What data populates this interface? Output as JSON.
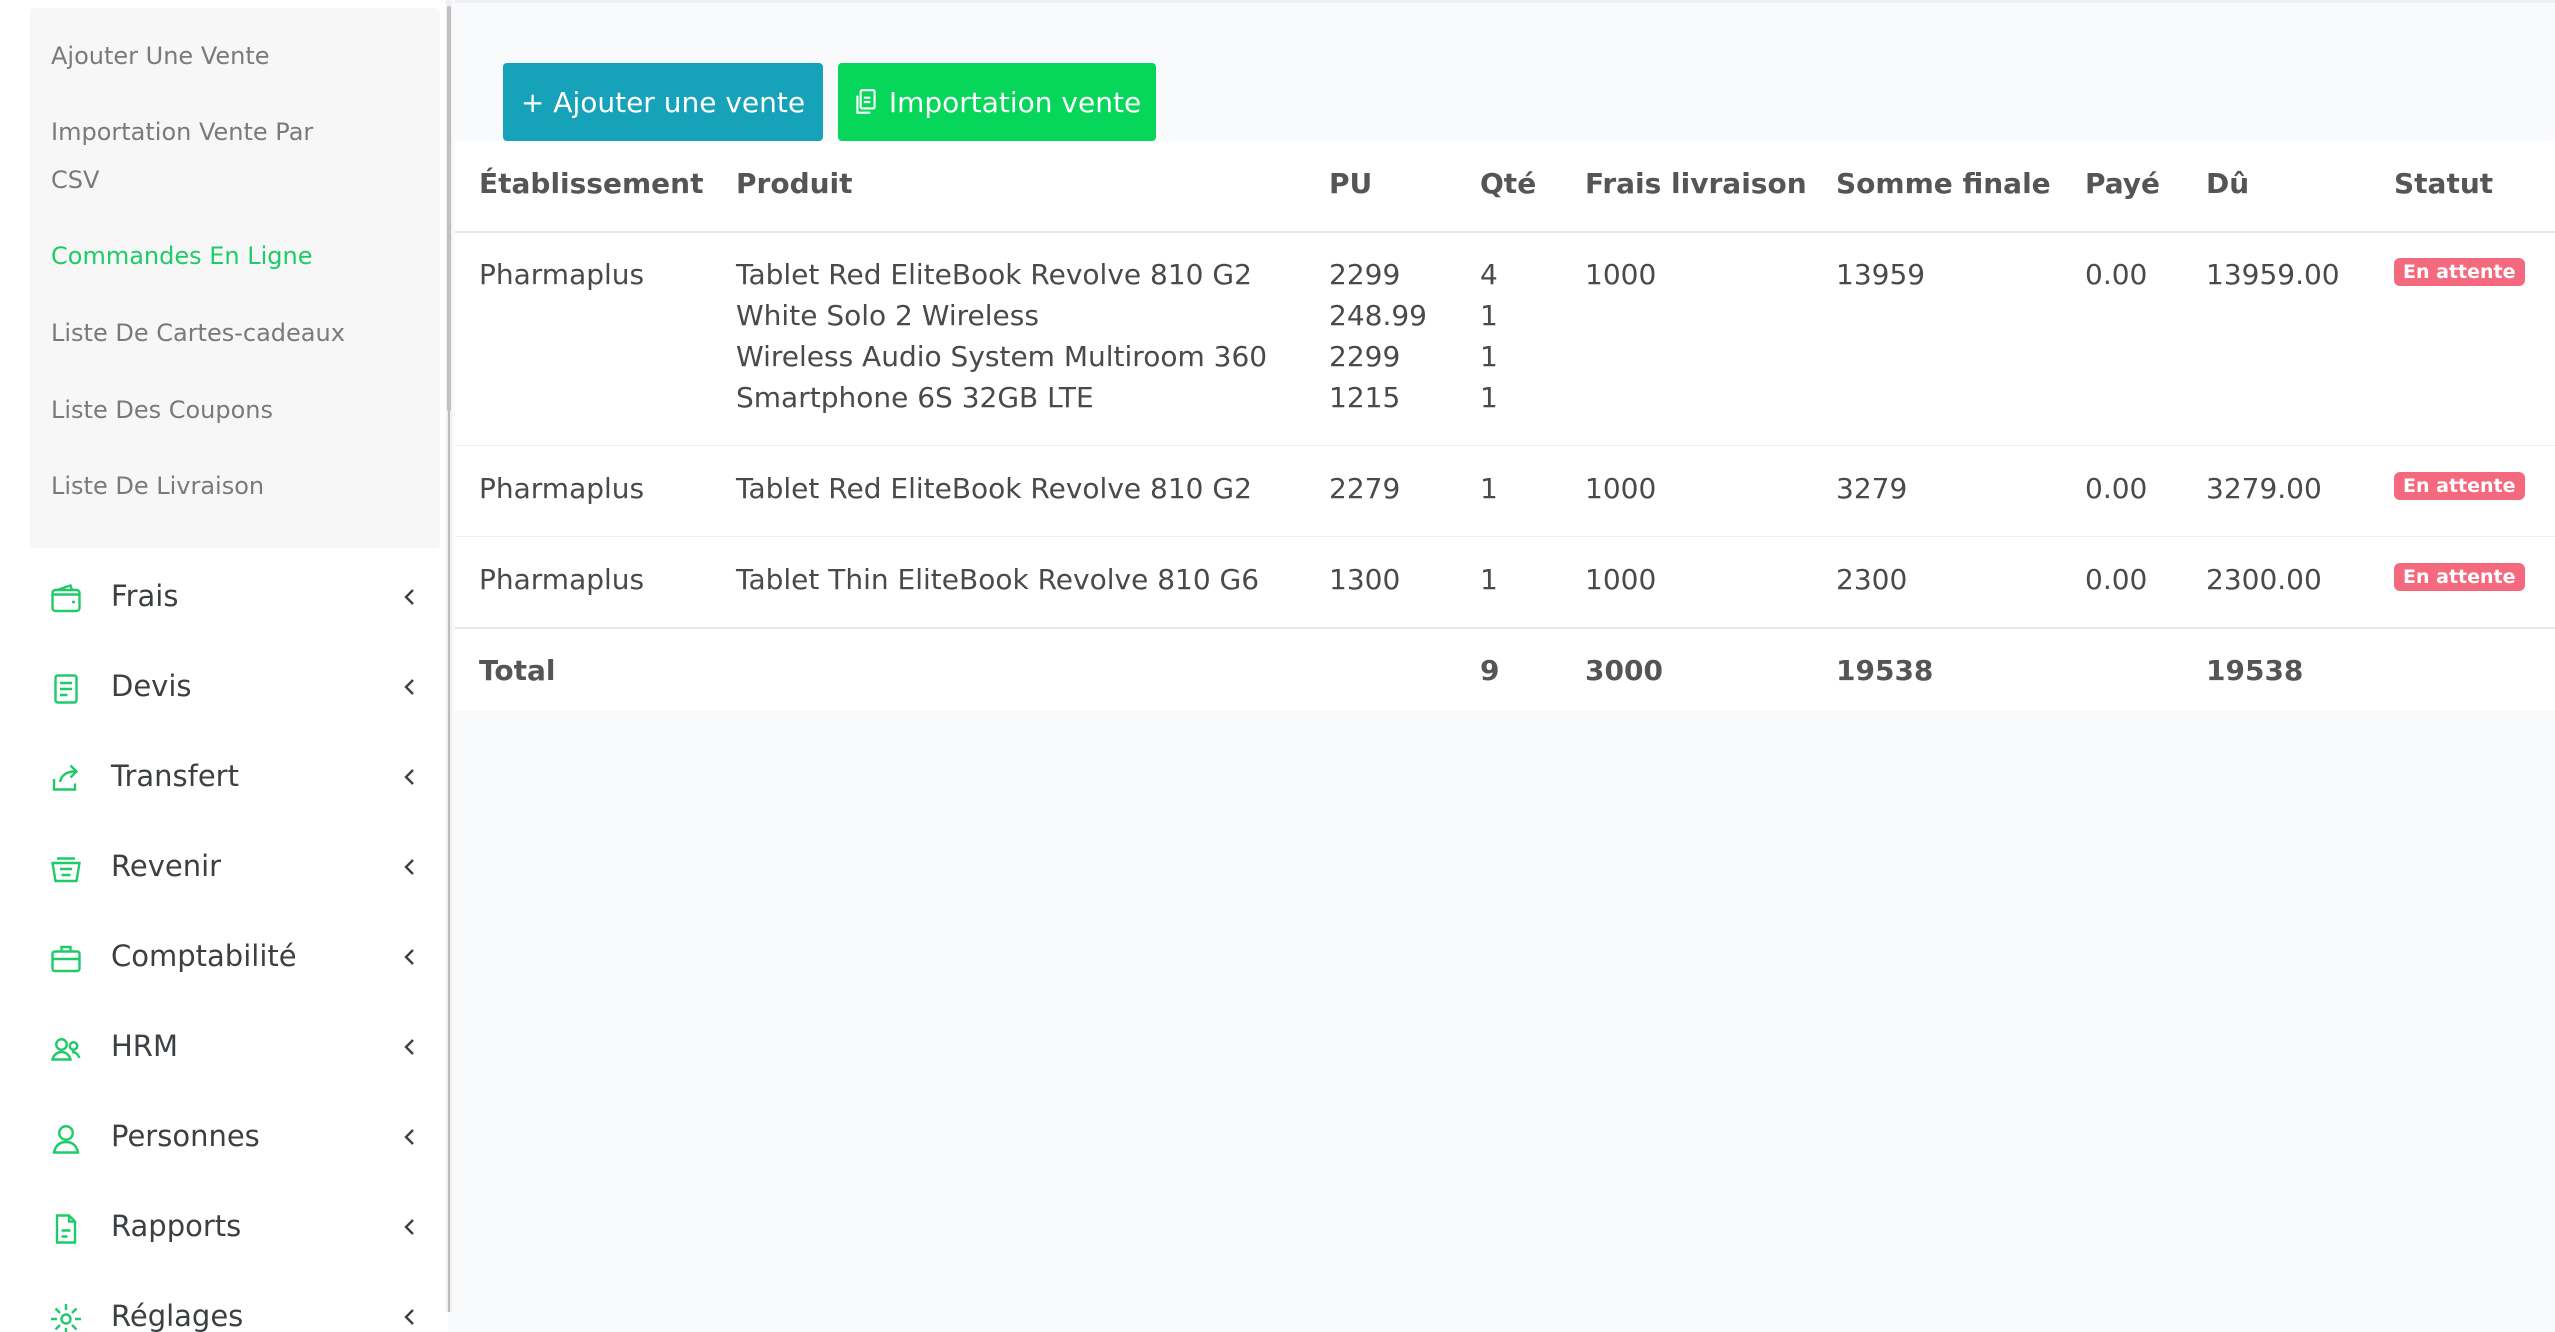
{
  "sidebar": {
    "submenu": [
      {
        "label": "Ajouter Une Vente"
      },
      {
        "label_line1": "Importation Vente Par",
        "label_line2": "CSV"
      },
      {
        "label": "Commandes En Ligne"
      },
      {
        "label": "Liste De Cartes-cadeaux"
      },
      {
        "label": "Liste Des Coupons"
      },
      {
        "label": "Liste De Livraison"
      }
    ],
    "menu": [
      {
        "label": "Frais",
        "icon": "wallet-icon"
      },
      {
        "label": "Devis",
        "icon": "document-icon"
      },
      {
        "label": "Transfert",
        "icon": "share-icon"
      },
      {
        "label": "Revenir",
        "icon": "basket-icon"
      },
      {
        "label": "Comptabilité",
        "icon": "briefcase-icon"
      },
      {
        "label": "HRM",
        "icon": "users-icon"
      },
      {
        "label": "Personnes",
        "icon": "user-icon"
      },
      {
        "label": "Rapports",
        "icon": "file-icon"
      },
      {
        "label": "Réglages",
        "icon": "gear-icon"
      }
    ],
    "accent_color": "#1fcb69"
  },
  "toolbar": {
    "add_label": "+ Ajouter une vente",
    "import_label": "Importation vente"
  },
  "table": {
    "headers": {
      "etablissement": "Établissement",
      "produit": "Produit",
      "pu": "PU",
      "qte": "Qté",
      "frais": "Frais livraison",
      "somme": "Somme finale",
      "paye": "Payé",
      "du": "Dû",
      "statut": "Statut"
    },
    "rows": [
      {
        "etablissement": "Pharmaplus",
        "produits": [
          {
            "name": "Tablet Red EliteBook Revolve 810 G2",
            "pu": "2299",
            "qte": "4"
          },
          {
            "name": "White Solo 2 Wireless",
            "pu": "248.99",
            "qte": "1"
          },
          {
            "name": "Wireless Audio System Multiroom 360",
            "pu": "2299",
            "qte": "1"
          },
          {
            "name": "Smartphone 6S 32GB LTE",
            "pu": "1215",
            "qte": "1"
          }
        ],
        "frais": "1000",
        "somme": "13959",
        "paye": "0.00",
        "du": "13959.00",
        "statut": "En attente"
      },
      {
        "etablissement": "Pharmaplus",
        "produits": [
          {
            "name": "Tablet Red EliteBook Revolve 810 G2",
            "pu": "2279",
            "qte": "1"
          }
        ],
        "frais": "1000",
        "somme": "3279",
        "paye": "0.00",
        "du": "3279.00",
        "statut": "En attente"
      },
      {
        "etablissement": "Pharmaplus",
        "produits": [
          {
            "name": "Tablet Thin EliteBook Revolve 810 G6",
            "pu": "1300",
            "qte": "1"
          }
        ],
        "frais": "1000",
        "somme": "2300",
        "paye": "0.00",
        "du": "2300.00",
        "statut": "En attente"
      }
    ],
    "total": {
      "label": "Total",
      "qte": "9",
      "frais": "3000",
      "somme": "19538",
      "du": "19538"
    },
    "status_color": "#f4697d"
  }
}
